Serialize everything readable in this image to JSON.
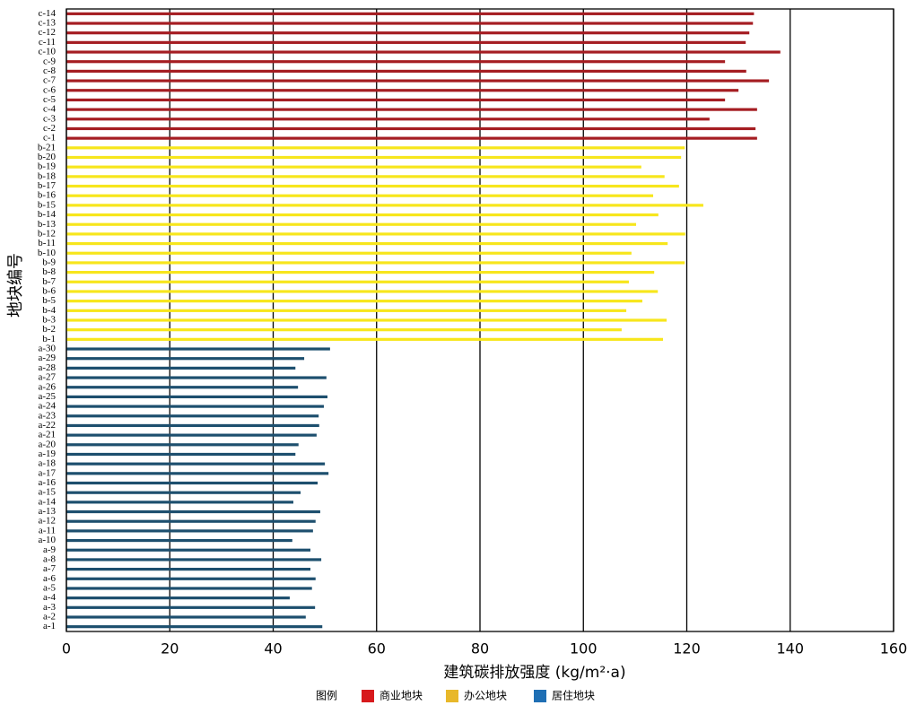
{
  "chart_data": {
    "type": "barh",
    "xlabel": "建筑碳排放强度 (kg/m²·a)",
    "ylabel": "地块编号",
    "legend_title": "图例",
    "categories": [
      "a-1",
      "a-2",
      "a-3",
      "a-4",
      "a-5",
      "a-6",
      "a-7",
      "a-8",
      "a-9",
      "a-10",
      "a-11",
      "a-12",
      "a-13",
      "a-14",
      "a-15",
      "a-16",
      "a-17",
      "a-18",
      "a-19",
      "a-20",
      "a-21",
      "a-22",
      "a-23",
      "a-24",
      "a-25",
      "a-26",
      "a-27",
      "a-28",
      "a-29",
      "a-30",
      "b-1",
      "b-2",
      "b-3",
      "b-4",
      "b-5",
      "b-6",
      "b-7",
      "b-8",
      "b-9",
      "b-10",
      "b-11",
      "b-12",
      "b-13",
      "b-14",
      "b-15",
      "b-16",
      "b-17",
      "b-18",
      "b-19",
      "b-20",
      "b-21",
      "c-1",
      "c-2",
      "c-3",
      "c-4",
      "c-5",
      "c-6",
      "c-7",
      "c-8",
      "c-9",
      "c-10",
      "c-11",
      "c-12",
      "c-13",
      "c-14"
    ],
    "series": [
      {
        "name": "商业地块",
        "color": "#a51d22",
        "legend_color": "#d7191c",
        "values": [
          null,
          null,
          null,
          null,
          null,
          null,
          null,
          null,
          null,
          null,
          null,
          null,
          null,
          null,
          null,
          null,
          null,
          null,
          null,
          null,
          null,
          null,
          null,
          null,
          null,
          null,
          null,
          null,
          null,
          null,
          null,
          null,
          null,
          null,
          null,
          null,
          null,
          null,
          null,
          null,
          null,
          null,
          null,
          null,
          null,
          null,
          null,
          null,
          null,
          null,
          null,
          133.6,
          133.3,
          124.4,
          133.6,
          127.4,
          130.0,
          135.9,
          131.5,
          127.4,
          138.1,
          131.4,
          132.1,
          132.8,
          133.0
        ]
      },
      {
        "name": "办公地块",
        "color": "#f7e61c",
        "legend_color": "#e8b82a",
        "values": [
          null,
          null,
          null,
          null,
          null,
          null,
          null,
          null,
          null,
          null,
          null,
          null,
          null,
          null,
          null,
          null,
          null,
          null,
          null,
          null,
          null,
          null,
          null,
          null,
          null,
          null,
          null,
          null,
          null,
          null,
          115.4,
          107.4,
          116.1,
          108.3,
          111.4,
          114.4,
          108.8,
          113.7,
          119.6,
          109.3,
          116.3,
          119.7,
          110.2,
          114.5,
          123.2,
          113.5,
          118.5,
          115.7,
          111.2,
          118.9,
          119.6,
          null,
          null,
          null,
          null,
          null,
          null,
          null,
          null,
          null,
          null,
          null,
          null,
          null,
          null
        ]
      },
      {
        "name": "居住地块",
        "color": "#1d4f6e",
        "legend_color": "#1f6fb4",
        "values": [
          49.5,
          46.3,
          48.1,
          43.2,
          47.5,
          48.2,
          47.2,
          49.3,
          47.2,
          43.7,
          47.7,
          48.2,
          49.1,
          43.9,
          45.3,
          48.6,
          50.7,
          50.0,
          44.3,
          44.9,
          48.4,
          48.9,
          48.8,
          49.8,
          50.5,
          44.8,
          50.3,
          44.3,
          46.0,
          51.0,
          null,
          null,
          null,
          null,
          null,
          null,
          null,
          null,
          null,
          null,
          null,
          null,
          null,
          null,
          null,
          null,
          null,
          null,
          null,
          null,
          null,
          null,
          null,
          null,
          null,
          null,
          null,
          null,
          null,
          null,
          null,
          null,
          null,
          null,
          null
        ]
      }
    ],
    "xlim": [
      0,
      160
    ],
    "xticks": [
      0,
      20,
      40,
      60,
      80,
      100,
      120,
      140,
      160
    ],
    "grid": true
  }
}
